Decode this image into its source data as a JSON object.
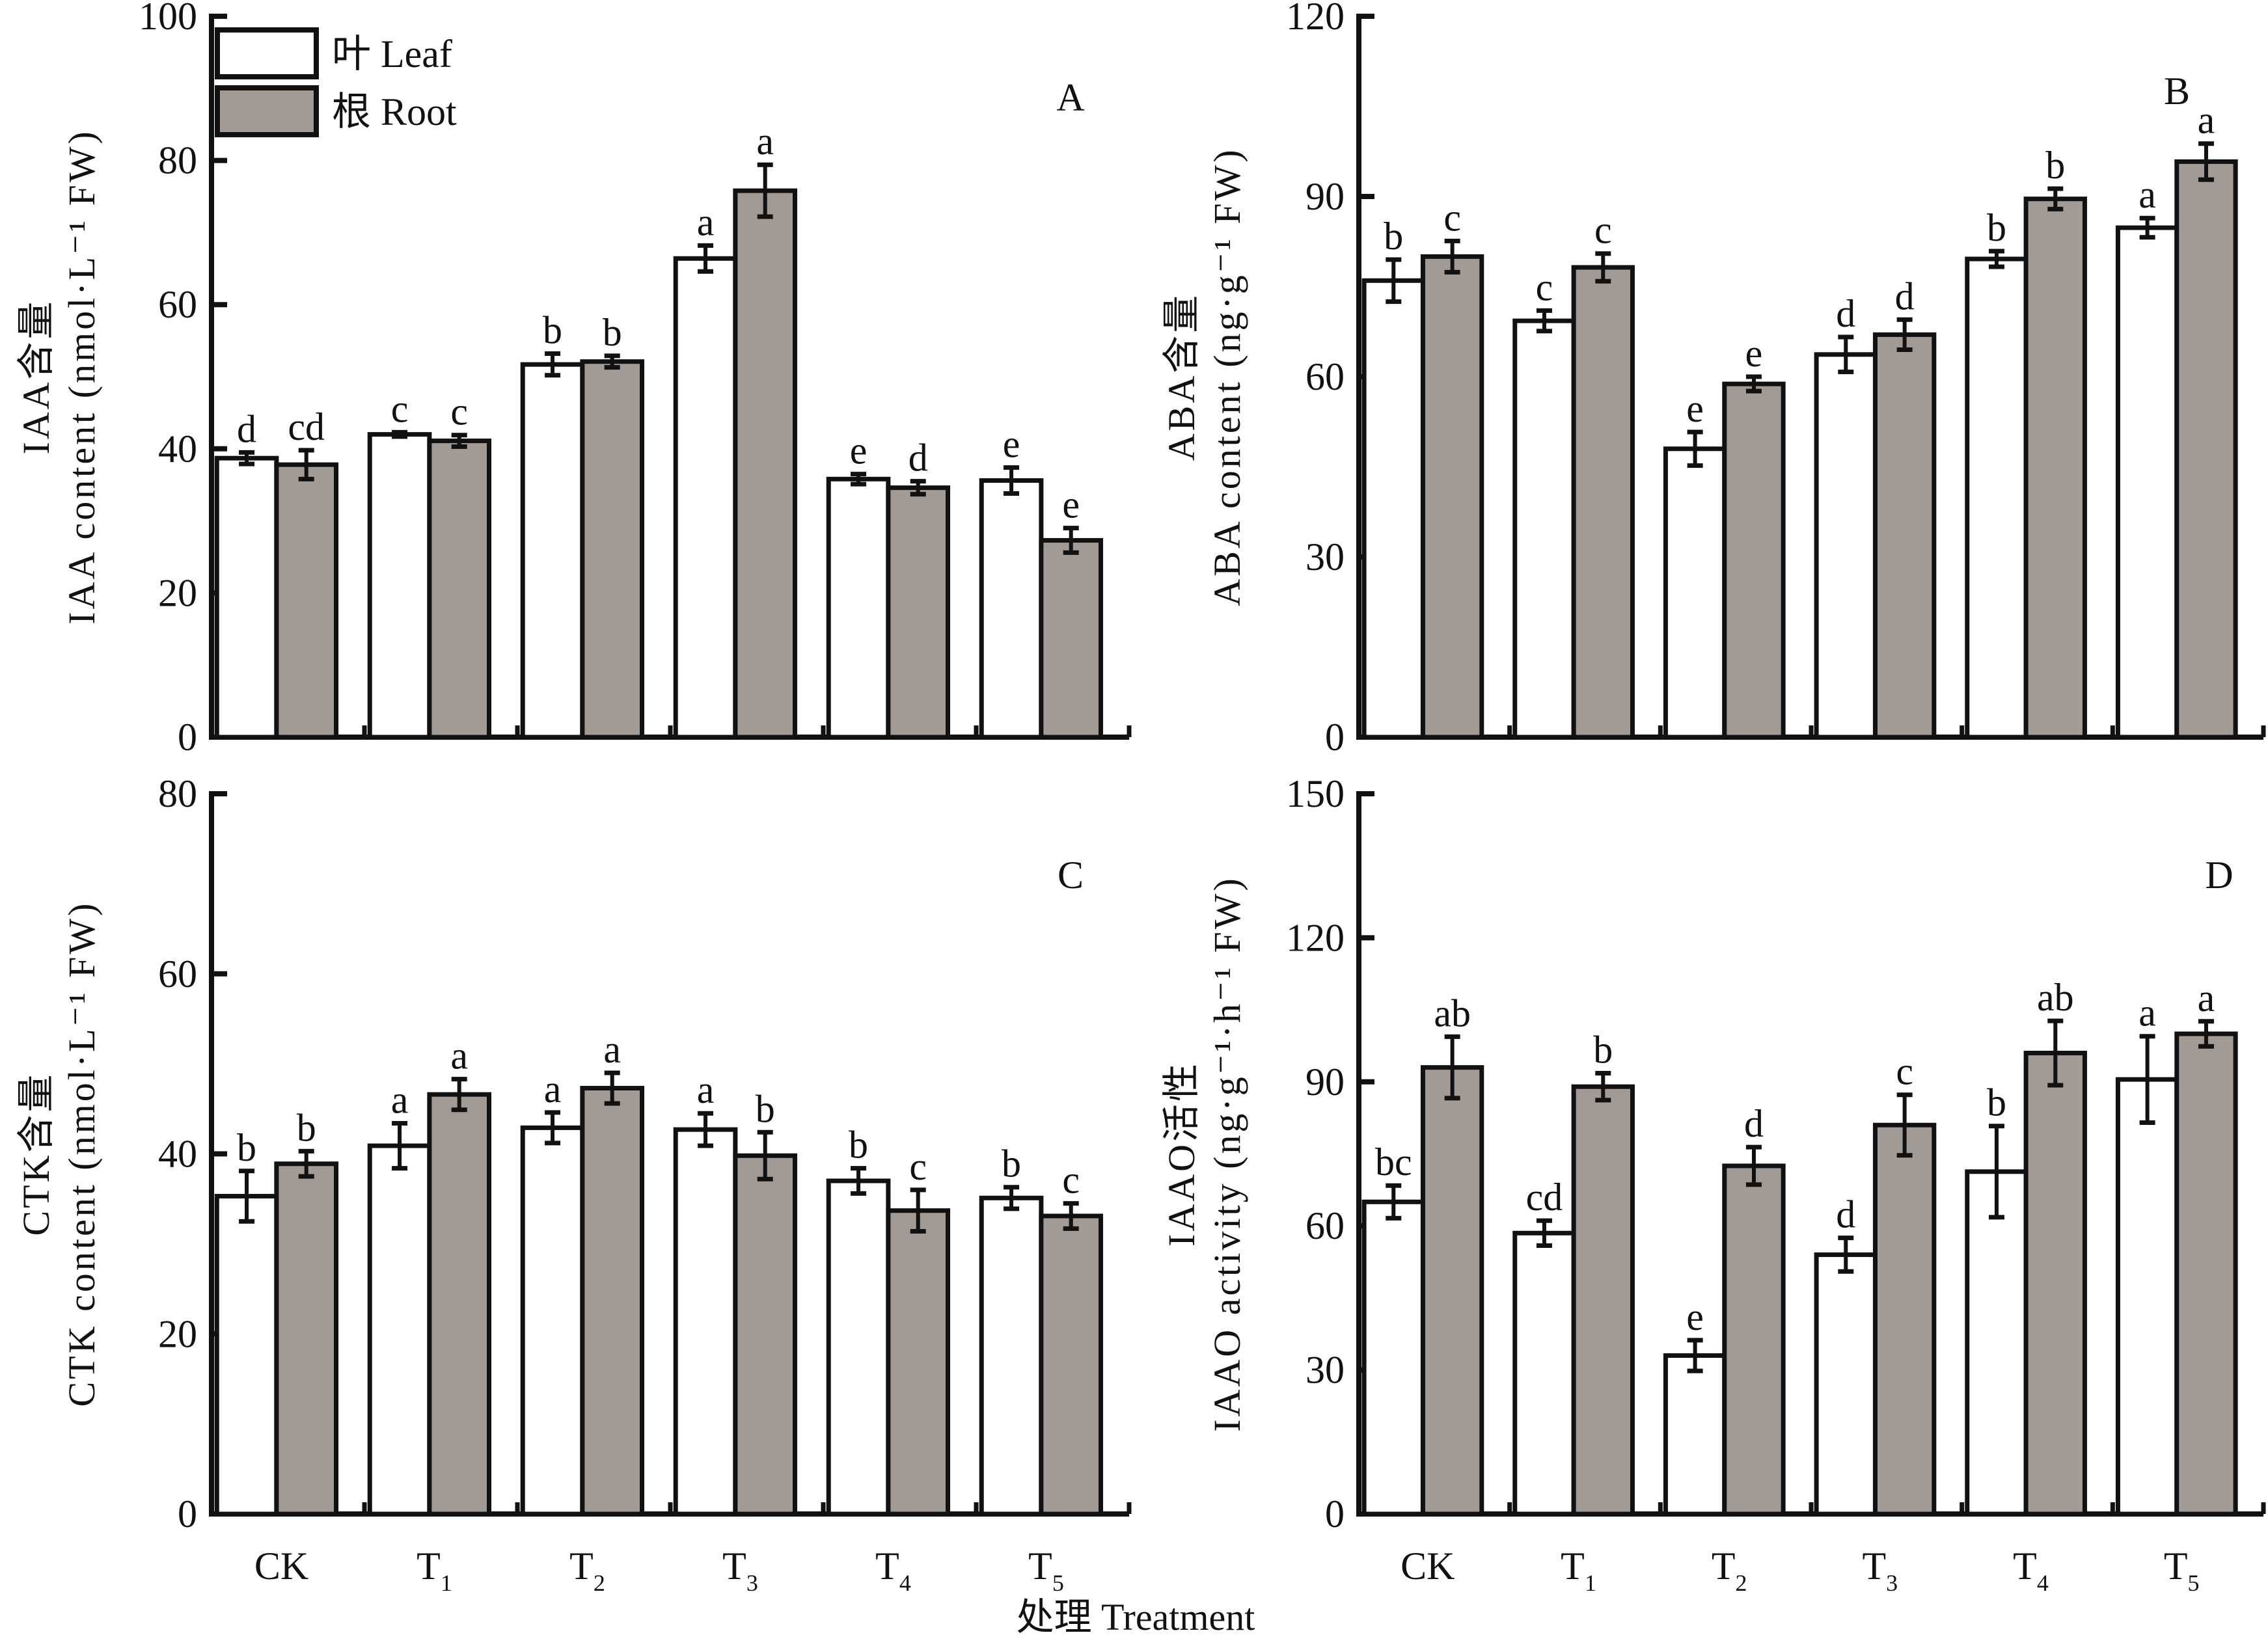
{
  "chart_data": [
    {
      "type": "bar",
      "panel": "A",
      "title": "",
      "ylabel_cn": "IAA含量",
      "ylabel_en": "IAA content (nmol·L⁻¹ FW)",
      "ylim": [
        0,
        100
      ],
      "yticks": [
        0,
        20,
        40,
        60,
        80,
        100
      ],
      "categories": [
        "CK",
        "T1",
        "T2",
        "T3",
        "T4",
        "T5"
      ],
      "series": [
        {
          "name": "叶 Leaf",
          "values": [
            38.7,
            42.0,
            51.7,
            66.4,
            35.8,
            35.6
          ],
          "errors": [
            0.8,
            0.3,
            1.5,
            1.8,
            0.7,
            1.8
          ],
          "letters": [
            "d",
            "c",
            "b",
            "a",
            "e",
            "e"
          ]
        },
        {
          "name": "根 Root",
          "values": [
            37.8,
            41.1,
            52.1,
            75.8,
            34.6,
            27.3
          ],
          "errors": [
            2.0,
            0.8,
            0.8,
            3.6,
            0.9,
            1.7
          ],
          "letters": [
            "cd",
            "c",
            "b",
            "a",
            "d",
            "e"
          ]
        }
      ]
    },
    {
      "type": "bar",
      "panel": "B",
      "title": "",
      "ylabel_cn": "ABA含量",
      "ylabel_en": "ABA content (ng·g⁻¹ FW)",
      "ylim": [
        0,
        120
      ],
      "yticks": [
        0,
        30,
        60,
        90,
        120
      ],
      "categories": [
        "CK",
        "T1",
        "T2",
        "T3",
        "T4",
        "T5"
      ],
      "series": [
        {
          "name": "叶 Leaf",
          "values": [
            76.0,
            69.3,
            48.0,
            63.7,
            79.6,
            84.8
          ],
          "errors": [
            3.5,
            1.7,
            2.8,
            2.9,
            1.3,
            1.6
          ],
          "letters": [
            "b",
            "c",
            "e",
            "d",
            "b",
            "a"
          ]
        },
        {
          "name": "根 Root",
          "values": [
            80.0,
            78.2,
            58.8,
            67.0,
            89.6,
            95.8
          ],
          "errors": [
            2.6,
            2.3,
            1.2,
            2.5,
            1.7,
            3.0
          ],
          "letters": [
            "c",
            "c",
            "e",
            "d",
            "b",
            "a"
          ]
        }
      ]
    },
    {
      "type": "bar",
      "panel": "C",
      "title": "",
      "ylabel_cn": "CTK含量",
      "ylabel_en": "CTK content (nmol·L⁻¹ FW)",
      "ylim": [
        0,
        80
      ],
      "yticks": [
        0,
        20,
        40,
        60,
        80
      ],
      "categories": [
        "CK",
        "T1",
        "T2",
        "T3",
        "T4",
        "T5"
      ],
      "series": [
        {
          "name": "叶 Leaf",
          "values": [
            35.3,
            40.9,
            42.9,
            42.7,
            37.0,
            35.1
          ],
          "errors": [
            2.8,
            2.5,
            1.7,
            1.8,
            1.4,
            1.2
          ],
          "letters": [
            "b",
            "a",
            "a",
            "a",
            "b",
            "b"
          ]
        },
        {
          "name": "根 Root",
          "values": [
            38.9,
            46.6,
            47.3,
            39.8,
            33.7,
            33.1
          ],
          "errors": [
            1.4,
            1.7,
            1.7,
            2.6,
            2.3,
            1.4
          ],
          "letters": [
            "b",
            "a",
            "a",
            "b",
            "c",
            "c"
          ]
        }
      ]
    },
    {
      "type": "bar",
      "panel": "D",
      "title": "",
      "ylabel_cn": "IAAO活性",
      "ylabel_en": "IAAO activity (ng·g⁻¹·h⁻¹ FW)",
      "ylim": [
        0,
        150
      ],
      "yticks": [
        0,
        30,
        60,
        90,
        120,
        150
      ],
      "categories": [
        "CK",
        "T1",
        "T2",
        "T3",
        "T4",
        "T5"
      ],
      "series": [
        {
          "name": "叶 Leaf",
          "values": [
            65.0,
            58.5,
            33.0,
            54.0,
            71.3,
            90.5
          ],
          "errors": [
            3.4,
            2.6,
            3.2,
            3.5,
            9.5,
            9.0
          ],
          "letters": [
            "bc",
            "cd",
            "e",
            "d",
            "b",
            "a"
          ]
        },
        {
          "name": "根 Root",
          "values": [
            93.0,
            89.0,
            72.5,
            81.0,
            96.0,
            100.0
          ],
          "errors": [
            6.4,
            2.8,
            3.9,
            6.3,
            6.7,
            2.6
          ],
          "letters": [
            "ab",
            "b",
            "d",
            "c",
            "ab",
            "a"
          ]
        }
      ]
    }
  ],
  "legend": {
    "placement": "top-left",
    "items": [
      {
        "label": "叶 Leaf",
        "color": "#ffffff"
      },
      {
        "label": "根 Root",
        "color": "#a29a95"
      }
    ]
  },
  "x_axis": {
    "title": "处理 Treatment",
    "categories": [
      {
        "main": "CK",
        "sub": ""
      },
      {
        "main": "T",
        "sub": "1"
      },
      {
        "main": "T",
        "sub": "2"
      },
      {
        "main": "T",
        "sub": "3"
      },
      {
        "main": "T",
        "sub": "4"
      },
      {
        "main": "T",
        "sub": "5"
      }
    ]
  },
  "colors": {
    "leaf": "#ffffff",
    "root": "#a29a95",
    "stroke": "#111111"
  }
}
